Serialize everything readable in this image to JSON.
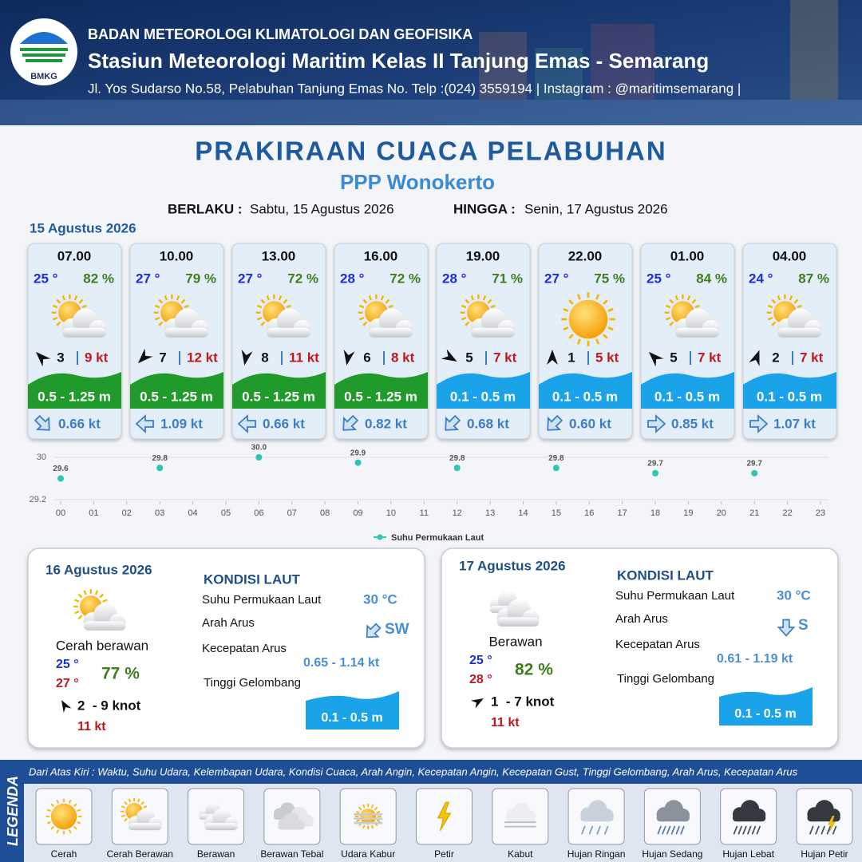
{
  "header": {
    "org": "BADAN METEOROLOGI KLIMATOLOGI DAN GEOFISIKA",
    "station": "Stasiun Meteorologi Maritim Kelas II Tanjung Emas - Semarang",
    "address": "Jl. Yos Sudarso No.58, Pelabuhan Tanjung Emas No. Telp :(024) 3559194 | Instagram : @maritimsemarang |",
    "logo": "BMKG"
  },
  "title": "PRAKIRAAN CUACA PELABUHAN",
  "subtitle": "PPP Wonokerto",
  "validity": {
    "from_label": "BERLAKU :",
    "from": "Sabtu, 15 Agustus 2026",
    "to_label": "HINGGA :",
    "to": "Senin, 17 Agustus 2026"
  },
  "day1": {
    "date": "15 Agustus 2026",
    "cards": [
      {
        "time": "07.00",
        "temp": "25 °",
        "humidity": "82 %",
        "wind": "3",
        "gust": "9 kt",
        "wave": "0.5 - 1.25 m",
        "current": "0.66 kt",
        "icon": "sun-cloud",
        "wind_dir": 315,
        "current_dir": 135,
        "wave_color": "#1f9a2b"
      },
      {
        "time": "10.00",
        "temp": "27 °",
        "humidity": "79 %",
        "wind": "7",
        "gust": "12 kt",
        "wave": "0.5 - 1.25 m",
        "current": "1.09 kt",
        "icon": "sun-cloud",
        "wind_dir": 225,
        "current_dir": 270,
        "wave_color": "#1f9a2b"
      },
      {
        "time": "13.00",
        "temp": "27 °",
        "humidity": "72 %",
        "wind": "8",
        "gust": "11 kt",
        "wave": "0.5 - 1.25 m",
        "current": "0.66 kt",
        "icon": "sun-cloud",
        "wind_dir": 190,
        "current_dir": 270,
        "wave_color": "#1f9a2b"
      },
      {
        "time": "16.00",
        "temp": "28 °",
        "humidity": "72 %",
        "wind": "6",
        "gust": "8 kt",
        "wave": "0.5 - 1.25 m",
        "current": "0.82 kt",
        "icon": "sun-cloud",
        "wind_dir": 190,
        "current_dir": 225,
        "wave_color": "#1f9a2b"
      },
      {
        "time": "19.00",
        "temp": "28 °",
        "humidity": "71 %",
        "wind": "5",
        "gust": "7 kt",
        "wave": "0.1 - 0.5 m",
        "current": "0.68 kt",
        "icon": "sun-cloud",
        "wind_dir": 120,
        "current_dir": 225,
        "wave_color": "#1aa3e8"
      },
      {
        "time": "22.00",
        "temp": "27 °",
        "humidity": "75 %",
        "wind": "1",
        "gust": "5 kt",
        "wave": "0.1 - 0.5 m",
        "current": "0.60 kt",
        "icon": "sun",
        "wind_dir": 0,
        "current_dir": 225,
        "wave_color": "#1aa3e8"
      },
      {
        "time": "01.00",
        "temp": "25 °",
        "humidity": "84 %",
        "wind": "5",
        "gust": "7 kt",
        "wave": "0.1 - 0.5 m",
        "current": "0.85 kt",
        "icon": "sun-cloud",
        "wind_dir": 315,
        "current_dir": 90,
        "wave_color": "#1aa3e8"
      },
      {
        "time": "04.00",
        "temp": "24 °",
        "humidity": "87 %",
        "wind": "2",
        "gust": "7 kt",
        "wave": "0.1 - 0.5 m",
        "current": "1.07 kt",
        "icon": "sun-cloud",
        "wind_dir": 20,
        "current_dir": 90,
        "wave_color": "#1aa3e8"
      }
    ]
  },
  "chart_data": {
    "type": "scatter",
    "name": "Suhu Permukaan Laut",
    "x": [
      0,
      3,
      6,
      9,
      12,
      15,
      18,
      21
    ],
    "values": [
      29.6,
      29.8,
      30.0,
      29.9,
      29.8,
      29.8,
      29.7,
      29.7
    ],
    "value_labels": [
      "29.6",
      "29.8",
      "30.0",
      "29.9",
      "29.8",
      "29.8",
      "29.7",
      "29.7"
    ],
    "color": "#2ec4b6",
    "xlim": [
      0,
      23
    ],
    "xticks": [
      {
        "value": 0,
        "label": "00"
      },
      {
        "value": 1,
        "label": "01"
      },
      {
        "value": 2,
        "label": "02"
      },
      {
        "value": 3,
        "label": "03"
      },
      {
        "value": 4,
        "label": "04"
      },
      {
        "value": 5,
        "label": "05"
      },
      {
        "value": 6,
        "label": "06"
      },
      {
        "value": 7,
        "label": "07"
      },
      {
        "value": 8,
        "label": "08"
      },
      {
        "value": 9,
        "label": "09"
      },
      10,
      11,
      12,
      13,
      14,
      15,
      16,
      17,
      18,
      19,
      20,
      21,
      22,
      23
    ],
    "ylim": [
      29.2,
      30
    ],
    "yticks": [
      29.2,
      30
    ],
    "grid": true
  },
  "days": [
    {
      "date": "16 Agustus 2026",
      "icon": "sun-cloud",
      "condition": "Cerah berawan",
      "temp_min": "25 °",
      "temp_max": "27 °",
      "humidity": "77 %",
      "wind": "2  - 9 knot",
      "wind_dir": 330,
      "gust": "11 kt",
      "sea": {
        "title": "KONDISI LAUT",
        "sst_label": "Suhu Permukaan Laut",
        "sst": "30 °C",
        "dir_label": "Arah Arus",
        "dir": "SW",
        "dir_deg": 225,
        "speed_label": "Kecepatan Arus",
        "speed": "0.65 - 1.14 kt",
        "wave_label": "Tinggi Gelombang",
        "wave": "0.1 - 0.5 m"
      }
    },
    {
      "date": "17 Agustus 2026",
      "icon": "cloud",
      "condition": "Berawan",
      "temp_min": "25 °",
      "temp_max": "28 °",
      "humidity": "82 %",
      "wind": "1  - 7 knot",
      "wind_dir": 60,
      "gust": "11 kt",
      "sea": {
        "title": "KONDISI LAUT",
        "sst_label": "Suhu Permukaan Laut",
        "sst": "30 °C",
        "dir_label": "Arah Arus",
        "dir": "S",
        "dir_deg": 180,
        "speed_label": "Kecepatan Arus",
        "speed": "0.61 - 1.19 kt",
        "wave_label": "Tinggi Gelombang",
        "wave": "0.1 - 0.5 m"
      }
    }
  ],
  "legend": {
    "title": "LEGENDA",
    "note": "Dari Atas Kiri : Waktu, Suhu Udara, Kelembapan Udara, Kondisi Cuaca, Arah Angin, Kecepatan Angin, Kecepatan Gust, Tinggi Gelombang, Arah Arus, Kecepatan Arus",
    "items": [
      {
        "label": "Cerah",
        "icon": "sun"
      },
      {
        "label": "Cerah Berawan",
        "icon": "sun-cloud"
      },
      {
        "label": "Berawan",
        "icon": "cloud"
      },
      {
        "label": "Berawan Tebal",
        "icon": "cloud-heavy"
      },
      {
        "label": "Udara Kabur",
        "icon": "haze"
      },
      {
        "label": "Petir",
        "icon": "lightning"
      },
      {
        "label": "Kabut",
        "icon": "fog"
      },
      {
        "label": "Hujan Ringan",
        "icon": "rain-light"
      },
      {
        "label": "Hujan Sedang",
        "icon": "rain-medium"
      },
      {
        "label": "Hujan Lebat",
        "icon": "rain-heavy"
      },
      {
        "label": "Hujan Petir",
        "icon": "thunderstorm"
      }
    ]
  }
}
